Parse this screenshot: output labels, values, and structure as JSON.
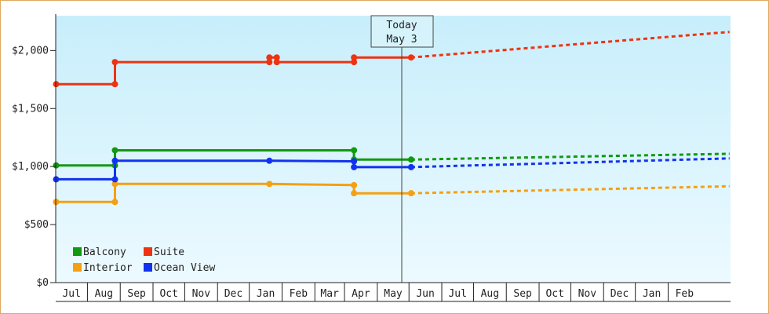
{
  "chart_data": {
    "type": "line",
    "title": "",
    "xlabel": "",
    "ylabel": "",
    "ylim": [
      0,
      2300
    ],
    "y_ticks": [
      0,
      500,
      1000,
      1500,
      2000
    ],
    "y_tick_labels": [
      "$0",
      "$500",
      "$1,000",
      "$1,500",
      "$2,000"
    ],
    "x_start_date": "2022-06-01",
    "x_end_date": "2023-02-28",
    "x_month_labels": [
      "Jul",
      "Aug",
      "Sep",
      "Oct",
      "Nov",
      "Dec",
      "Jan",
      "Feb",
      "Mar",
      "Apr",
      "May",
      "Jun",
      "Jul",
      "Aug",
      "Sep",
      "Oct",
      "Nov",
      "Dec",
      "Jan",
      "Feb"
    ],
    "today_marker": {
      "line1": "Today",
      "line2": "May 3",
      "date": "2022-05-03"
    },
    "legend_placement": "bottom-left",
    "grid": false,
    "background": [
      "#c8eefb",
      "#ecfaff"
    ],
    "series": [
      {
        "name": "Balcony",
        "color": "#119911",
        "points": [
          [
            "2021-06-01",
            1010
          ],
          [
            "2021-07-27",
            1010
          ],
          [
            "2021-07-27",
            1140
          ],
          [
            "2022-03-10",
            1140
          ],
          [
            "2022-03-10",
            1060
          ],
          [
            "2022-05-03",
            1060
          ]
        ],
        "projection": [
          [
            "2022-05-03",
            1060
          ],
          [
            "2023-02-28",
            1110
          ]
        ]
      },
      {
        "name": "Suite",
        "color": "#ee3311",
        "points": [
          [
            "2021-06-01",
            1710
          ],
          [
            "2021-07-27",
            1710
          ],
          [
            "2021-07-27",
            1900
          ],
          [
            "2021-12-20",
            1900
          ],
          [
            "2021-12-20",
            1940
          ],
          [
            "2021-12-27",
            1940
          ],
          [
            "2021-12-27",
            1900
          ],
          [
            "2022-03-10",
            1900
          ],
          [
            "2022-03-10",
            1940
          ],
          [
            "2022-05-03",
            1940
          ]
        ],
        "projection": [
          [
            "2022-05-03",
            1940
          ],
          [
            "2023-02-28",
            2160
          ]
        ]
      },
      {
        "name": "Interior",
        "color": "#f5a011",
        "points": [
          [
            "2021-06-01",
            695
          ],
          [
            "2021-07-27",
            695
          ],
          [
            "2021-07-27",
            850
          ],
          [
            "2021-12-20",
            850
          ],
          [
            "2022-03-10",
            840
          ],
          [
            "2022-03-10",
            770
          ],
          [
            "2022-05-03",
            770
          ]
        ],
        "projection": [
          [
            "2022-05-03",
            770
          ],
          [
            "2023-02-28",
            830
          ]
        ]
      },
      {
        "name": "Ocean View",
        "color": "#1133ee",
        "points": [
          [
            "2021-06-01",
            890
          ],
          [
            "2021-07-27",
            890
          ],
          [
            "2021-07-27",
            1050
          ],
          [
            "2021-12-20",
            1050
          ],
          [
            "2022-03-10",
            1045
          ],
          [
            "2022-03-10",
            995
          ],
          [
            "2022-05-03",
            995
          ]
        ],
        "projection": [
          [
            "2022-05-03",
            995
          ],
          [
            "2023-02-28",
            1070
          ]
        ]
      }
    ]
  }
}
